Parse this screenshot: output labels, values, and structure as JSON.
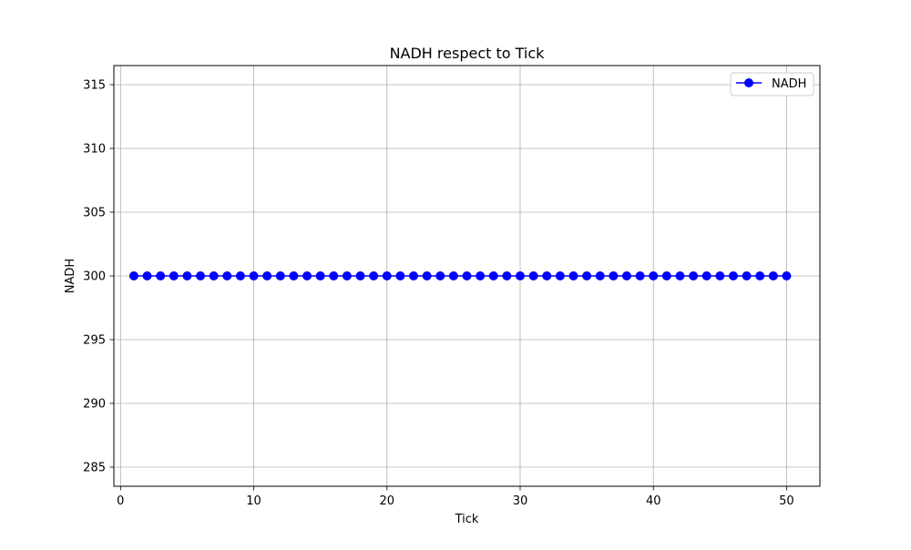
{
  "chart_data": {
    "type": "line",
    "title": "NADH respect to Tick",
    "xlabel": "Tick",
    "ylabel": "NADH",
    "xlim": [
      -0.5,
      52.5
    ],
    "ylim": [
      283.5,
      316.5
    ],
    "xticks": [
      0,
      10,
      20,
      30,
      40,
      50
    ],
    "yticks": [
      285,
      290,
      295,
      300,
      305,
      310,
      315
    ],
    "grid": true,
    "legend_position": "top-right",
    "series": [
      {
        "name": "NADH",
        "color": "#0000ff",
        "marker": "circle",
        "x": [
          1,
          2,
          3,
          4,
          5,
          6,
          7,
          8,
          9,
          10,
          11,
          12,
          13,
          14,
          15,
          16,
          17,
          18,
          19,
          20,
          21,
          22,
          23,
          24,
          25,
          26,
          27,
          28,
          29,
          30,
          31,
          32,
          33,
          34,
          35,
          36,
          37,
          38,
          39,
          40,
          41,
          42,
          43,
          44,
          45,
          46,
          47,
          48,
          49,
          50
        ],
        "y": [
          300,
          300,
          300,
          300,
          300,
          300,
          300,
          300,
          300,
          300,
          300,
          300,
          300,
          300,
          300,
          300,
          300,
          300,
          300,
          300,
          300,
          300,
          300,
          300,
          300,
          300,
          300,
          300,
          300,
          300,
          300,
          300,
          300,
          300,
          300,
          300,
          300,
          300,
          300,
          300,
          300,
          300,
          300,
          300,
          300,
          300,
          300,
          300,
          300,
          300
        ]
      }
    ]
  }
}
